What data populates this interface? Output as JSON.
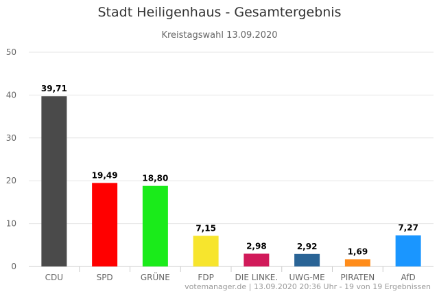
{
  "chart_data": {
    "type": "bar",
    "title": "Stadt Heiligenhaus - Gesamtergebnis",
    "subtitle": "Kreistagswahl 13.09.2020",
    "xlabel": "",
    "ylabel": "",
    "ylim": [
      0,
      50
    ],
    "yticks": [
      0,
      10,
      20,
      30,
      40,
      50
    ],
    "grid": true,
    "legend": "none",
    "categories": [
      "CDU",
      "SPD",
      "GRÜNE",
      "FDP",
      "DIE LINKE.",
      "UWG-ME",
      "PIRATEN",
      "AfD"
    ],
    "values": [
      39.71,
      19.49,
      18.8,
      7.15,
      2.98,
      2.92,
      1.69,
      7.27
    ],
    "value_labels": [
      "39,71",
      "19,49",
      "18,80",
      "7,15",
      "2,98",
      "2,92",
      "1,69",
      "7,27"
    ],
    "colors": [
      "#4a4a4a",
      "#ff0000",
      "#1aeb1a",
      "#f7e52d",
      "#d11a5a",
      "#2a6496",
      "#ff8c1a",
      "#1a96ff"
    ]
  },
  "footer": {
    "credit": "votemanager.de | 13.09.2020 20:36 Uhr - 19 von 19 Ergebnissen"
  }
}
